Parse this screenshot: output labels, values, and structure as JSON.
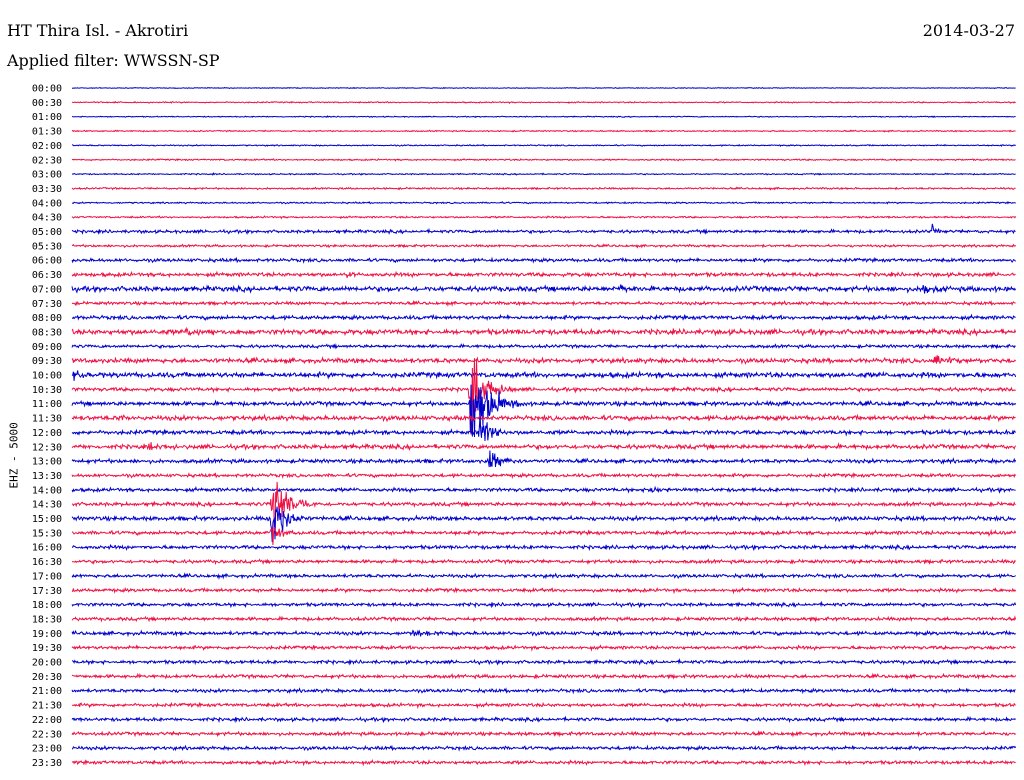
{
  "header": {
    "station": "HT Thira Isl. - Akrotiri",
    "date": "2014-03-27",
    "filter": "Applied filter: WWSSN-SP"
  },
  "chart_data": {
    "type": "line",
    "subtype": "helicorder",
    "ylabel": "EHZ - 5000",
    "xlabel": "",
    "tick_labels": [
      "00:00",
      "00:30",
      "01:00",
      "01:30",
      "02:00",
      "02:30",
      "03:00",
      "03:30",
      "04:00",
      "04:30",
      "05:00",
      "05:30",
      "06:00",
      "06:30",
      "07:00",
      "07:30",
      "08:00",
      "08:30",
      "09:00",
      "09:30",
      "10:00",
      "10:30",
      "11:00",
      "11:30",
      "12:00",
      "12:30",
      "13:00",
      "13:30",
      "14:00",
      "14:30",
      "15:00",
      "15:30",
      "16:00",
      "16:30",
      "17:00",
      "17:30",
      "18:00",
      "18:30",
      "19:00",
      "19:30",
      "20:00",
      "20:30",
      "21:00",
      "21:30",
      "22:00",
      "22:30",
      "23:00",
      "23:30"
    ],
    "colors": [
      "#0000cc",
      "#ee1144"
    ],
    "noise_levels": [
      0.3,
      0.5,
      0.4,
      0.5,
      0.5,
      0.6,
      0.5,
      0.7,
      0.6,
      0.7,
      1.2,
      0.9,
      1.3,
      1.5,
      2.0,
      1.2,
      1.5,
      2.0,
      1.2,
      1.8,
      2.0,
      1.4,
      1.6,
      1.8,
      1.6,
      1.7,
      1.5,
      1.3,
      1.4,
      1.4,
      1.6,
      1.4,
      1.4,
      1.3,
      1.3,
      1.3,
      1.3,
      1.3,
      1.4,
      1.3,
      1.3,
      1.3,
      1.3,
      1.3,
      1.3,
      1.3,
      1.3,
      1.3
    ],
    "events": [
      {
        "row": 21,
        "x": 0.42,
        "amp": 45,
        "len": 0.05
      },
      {
        "row": 22,
        "x": 0.42,
        "amp": 60,
        "len": 0.06
      },
      {
        "row": 24,
        "x": 0.43,
        "amp": 20,
        "len": 0.04
      },
      {
        "row": 26,
        "x": 0.44,
        "amp": 12,
        "len": 0.05
      },
      {
        "row": 29,
        "x": 0.21,
        "amp": 50,
        "len": 0.05
      },
      {
        "row": 30,
        "x": 0.21,
        "amp": 40,
        "len": 0.04
      },
      {
        "row": 31,
        "x": 0.21,
        "amp": 15,
        "len": 0.03
      },
      {
        "row": 38,
        "x": 0.36,
        "amp": 7,
        "len": 0.03
      },
      {
        "row": 28,
        "x": 0.61,
        "amp": 6,
        "len": 0.04
      },
      {
        "row": 31,
        "x": 0.97,
        "amp": 6,
        "len": 0.02
      },
      {
        "row": 10,
        "x": 0.91,
        "amp": 7,
        "len": 0.02
      },
      {
        "row": 14,
        "x": 0.58,
        "amp": 7,
        "len": 0.03
      },
      {
        "row": 14,
        "x": 0.9,
        "amp": 8,
        "len": 0.03
      },
      {
        "row": 13,
        "x": 0.29,
        "amp": 6,
        "len": 0.02
      },
      {
        "row": 17,
        "x": 0.12,
        "amp": 5,
        "len": 0.05
      },
      {
        "row": 19,
        "x": 0.91,
        "amp": 7,
        "len": 0.05
      },
      {
        "row": 20,
        "x": 0.0,
        "amp": 6,
        "len": 0.04
      },
      {
        "row": 23,
        "x": 0.05,
        "amp": 5,
        "len": 0.03
      },
      {
        "row": 25,
        "x": 0.08,
        "amp": 5,
        "len": 0.04
      },
      {
        "row": 24,
        "x": 0.92,
        "amp": 5,
        "len": 0.02
      },
      {
        "row": 22,
        "x": 0.75,
        "amp": 4,
        "len": 0.03
      }
    ]
  }
}
